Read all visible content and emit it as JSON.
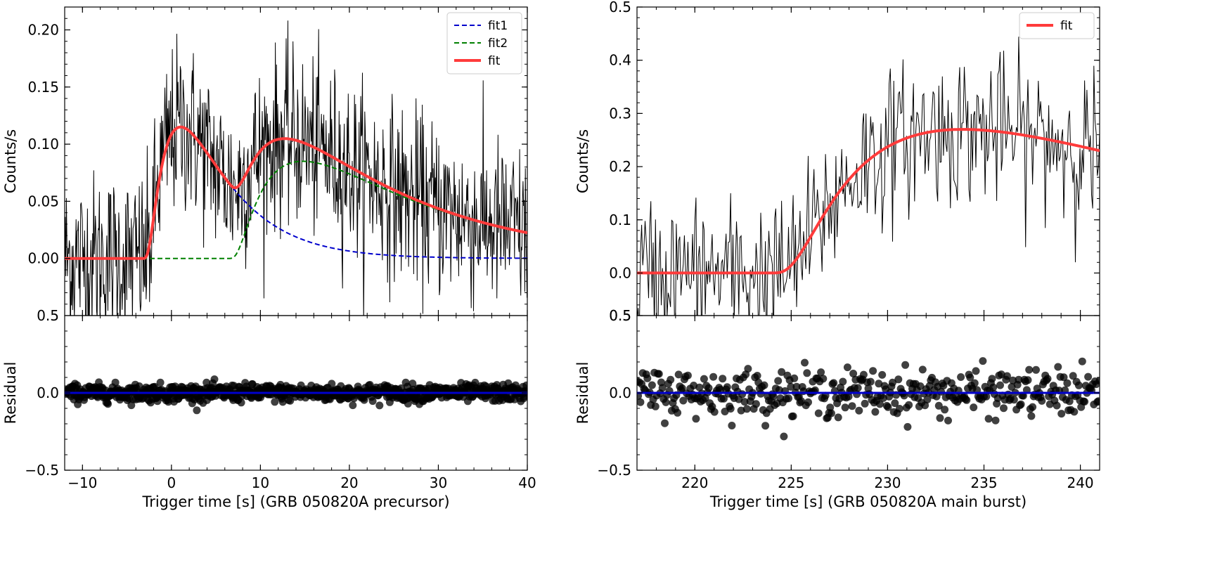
{
  "chart_data": [
    {
      "type": "line",
      "panel": "left-top",
      "ylabel": "Counts/s",
      "xlim": [
        -12,
        40
      ],
      "ylim": [
        -0.05,
        0.22
      ],
      "yticks": [
        0.0,
        0.05,
        0.1,
        0.15,
        0.2
      ],
      "ytick_labels": [
        "0.00",
        "0.05",
        "0.10",
        "0.15",
        "0.20"
      ],
      "top_tick_label": "0.5",
      "legend_placement": "top-right",
      "series": [
        {
          "name": "fit1",
          "style": "dashed",
          "color": "#0000cc",
          "pulse": {
            "t0": -3.5,
            "A": 0.115,
            "rise": 3.9,
            "decay": 5.3
          }
        },
        {
          "name": "fit2",
          "style": "dashed",
          "color": "#008000",
          "pulse": {
            "t0": 6.0,
            "A": 0.085,
            "rise": 5.5,
            "decay": 14.0
          }
        },
        {
          "name": "fit",
          "style": "solid",
          "color": "#ff3b3b",
          "note_sum": true
        }
      ],
      "data_series": {
        "color": "#000000",
        "x_start": -12,
        "x_end": 40,
        "step": 0.064,
        "noise_sd": 0.038,
        "points": [
          [
            -12,
            0.02
          ],
          [
            -10,
            0.03
          ],
          [
            -8,
            0.01
          ],
          [
            -6,
            0.02
          ],
          [
            -4,
            0.0
          ],
          [
            -2,
            0.05
          ],
          [
            0,
            0.12
          ],
          [
            1,
            0.13
          ],
          [
            2,
            0.11
          ],
          [
            4,
            0.08
          ],
          [
            6,
            0.05
          ],
          [
            8,
            0.06
          ],
          [
            10,
            0.09
          ],
          [
            12,
            0.09
          ],
          [
            14,
            0.08
          ],
          [
            16,
            0.07
          ],
          [
            20,
            0.05
          ],
          [
            25,
            0.03
          ],
          [
            30,
            0.02
          ],
          [
            35,
            0.01
          ],
          [
            40,
            0.01
          ]
        ]
      }
    },
    {
      "type": "scatter",
      "panel": "left-bottom",
      "ylabel": "Residual",
      "xlabel": "Trigger time [s] (GRB 050820A precursor)",
      "xlim": [
        -12,
        40
      ],
      "ylim": [
        -0.5,
        0.5
      ],
      "xticks": [
        -10,
        0,
        10,
        20,
        30,
        40
      ],
      "xtick_labels": [
        "−10",
        "0",
        "10",
        "20",
        "30",
        "40"
      ],
      "yticks": [
        -0.5,
        0.0
      ],
      "ytick_labels": [
        "−0.5",
        "0.0"
      ],
      "zero_line_color": "#0000cc",
      "residual_sd": 0.028
    },
    {
      "type": "line",
      "panel": "right-top",
      "ylabel": "Counts/s",
      "xlim": [
        217,
        241
      ],
      "ylim": [
        -0.08,
        0.5
      ],
      "yticks": [
        0.0,
        0.1,
        0.2,
        0.3,
        0.4,
        0.5
      ],
      "ytick_labels": [
        "0.0",
        "0.1",
        "0.2",
        "0.3",
        "0.4",
        "0.5"
      ],
      "bottom_tick_label": "0.5",
      "legend_placement": "top-right",
      "series": [
        {
          "name": "fit",
          "style": "solid",
          "color": "#ff3b3b",
          "pulse": {
            "t0": 223.5,
            "A": 0.27,
            "rise": 6.0,
            "decay": 18.0
          }
        }
      ],
      "data_series": {
        "color": "#000000",
        "x_start": 217,
        "x_end": 241,
        "step": 0.06,
        "noise_sd": 0.07,
        "points": [
          [
            217,
            0.02
          ],
          [
            219,
            0.03
          ],
          [
            221,
            0.02
          ],
          [
            223,
            0.04
          ],
          [
            224,
            0.06
          ],
          [
            225,
            0.12
          ],
          [
            226,
            0.18
          ],
          [
            227,
            0.22
          ],
          [
            228,
            0.25
          ],
          [
            229,
            0.28
          ],
          [
            230,
            0.3
          ],
          [
            231,
            0.28
          ],
          [
            232,
            0.27
          ],
          [
            234,
            0.25
          ],
          [
            236,
            0.24
          ],
          [
            238,
            0.22
          ],
          [
            240,
            0.2
          ],
          [
            241,
            0.19
          ]
        ]
      }
    },
    {
      "type": "scatter",
      "panel": "right-bottom",
      "ylabel": "Residual",
      "xlabel": "Trigger time [s] (GRB 050820A main burst)",
      "xlim": [
        217,
        241
      ],
      "ylim": [
        -0.5,
        0.5
      ],
      "xticks": [
        220,
        225,
        230,
        235,
        240
      ],
      "xtick_labels": [
        "220",
        "225",
        "230",
        "235",
        "240"
      ],
      "yticks": [
        -0.5,
        0.0,
        0.5
      ],
      "ytick_labels": [
        "−0.5",
        "0.0",
        "0.5"
      ],
      "zero_line_color": "#0000cc",
      "residual_sd": 0.075
    }
  ]
}
